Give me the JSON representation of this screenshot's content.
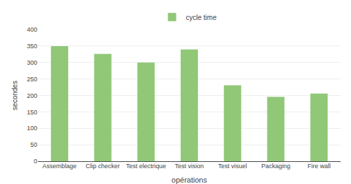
{
  "chart_data": {
    "type": "bar",
    "categories": [
      "Assemblage",
      "Clip checker",
      "Test electrique",
      "Test vision",
      "Test visuel",
      "Packaging",
      "Fire wall"
    ],
    "series": [
      {
        "name": "cycle time",
        "color": "#90C878",
        "values": [
          350,
          326,
          300,
          340,
          231,
          196,
          206
        ]
      }
    ],
    "xlabel": "opérations",
    "ylabel": "secondes",
    "ylim": [
      0,
      400
    ],
    "yticks": [
      0,
      50,
      100,
      150,
      200,
      250,
      300,
      350,
      400
    ],
    "grid": true,
    "legend": "top"
  }
}
